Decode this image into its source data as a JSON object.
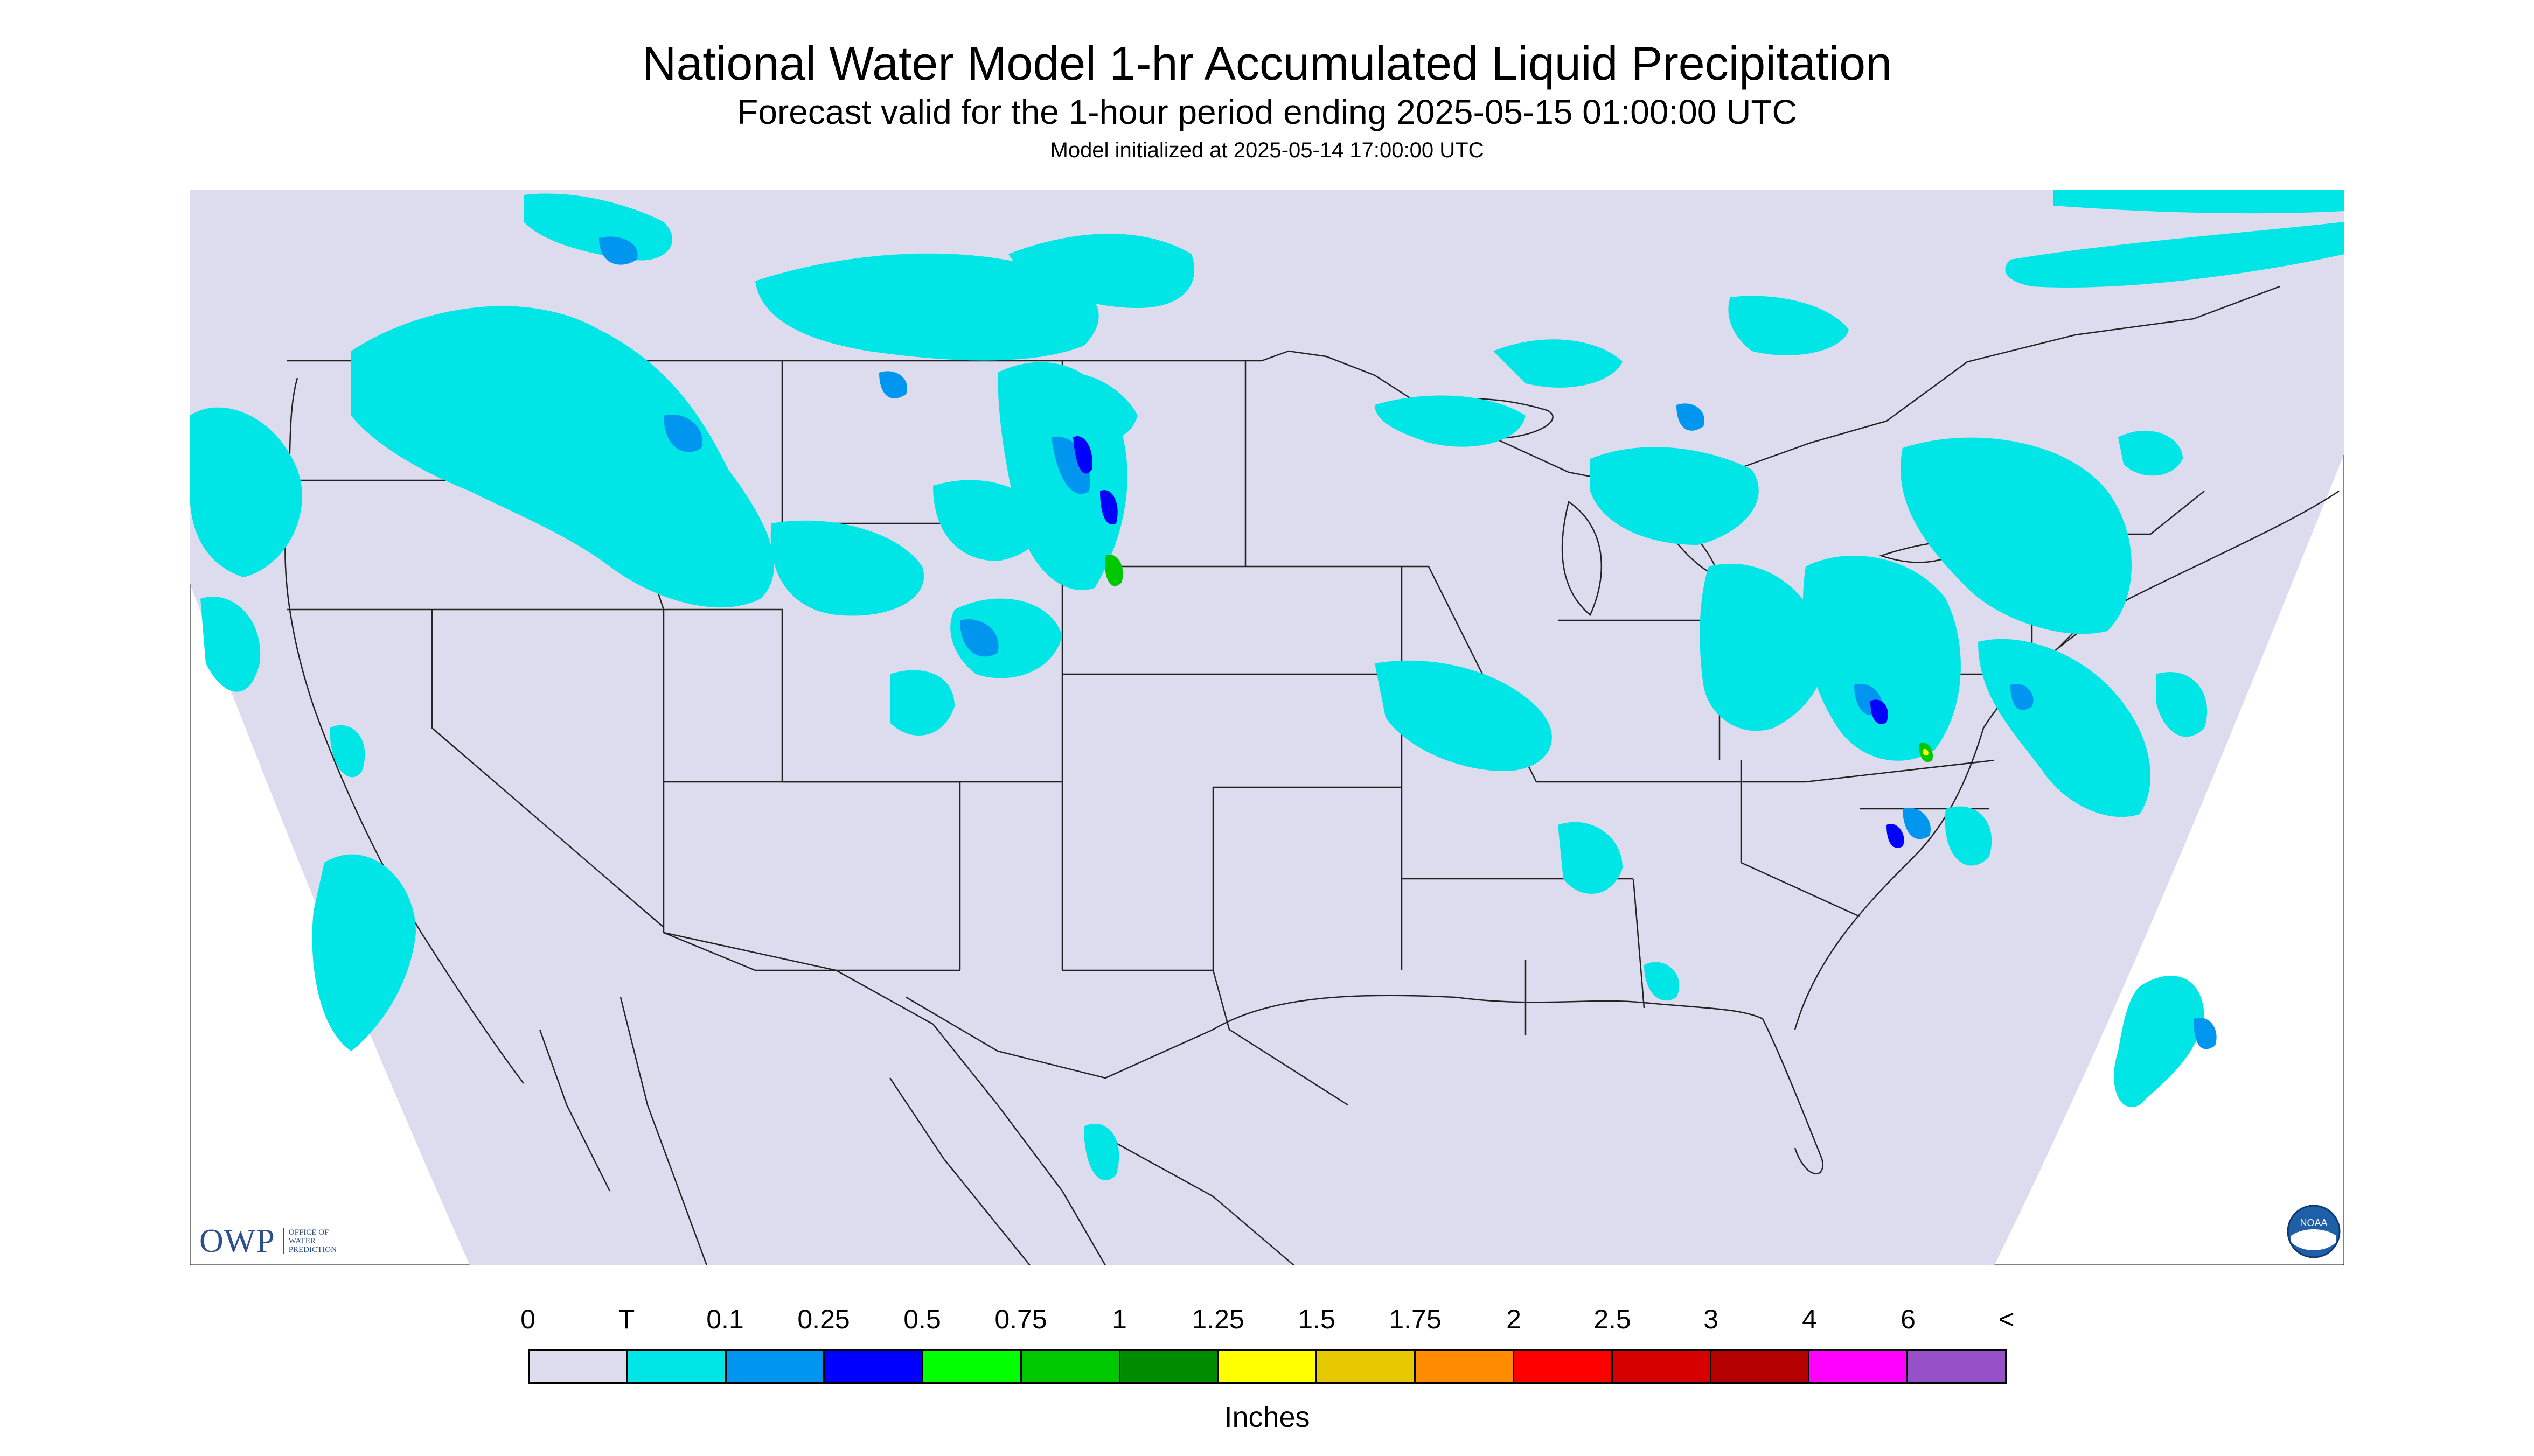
{
  "title": "National Water Model 1-hr Accumulated Liquid Precipitation",
  "subtitle": "Forecast valid for the 1-hour period ending 2025-05-15 01:00:00 UTC",
  "init_line": "Model initialized at 2025-05-14 17:00:00 UTC",
  "map": {
    "region": "Contiguous United States",
    "background_color": "#dcdcee",
    "no_data_color": "#ffffff",
    "boundary_color": "#000000"
  },
  "legend": {
    "ticks": [
      "0",
      "T",
      "0.1",
      "0.25",
      "0.5",
      "0.75",
      "1",
      "1.25",
      "1.5",
      "1.75",
      "2",
      "2.5",
      "3",
      "4",
      "6",
      "<"
    ],
    "colors": [
      "#dcdcee",
      "#00e6e6",
      "#0096f0",
      "#0000ff",
      "#00ff00",
      "#00c800",
      "#008c00",
      "#ffff00",
      "#e6c800",
      "#ff8c00",
      "#ff0000",
      "#d70000",
      "#b40000",
      "#ff00ff",
      "#9650c8"
    ],
    "units": "Inches"
  },
  "logos": {
    "left": {
      "mark": "OWP",
      "text": "OFFICE OF\nWATER\nPREDICTION",
      "icon": "owp-logo"
    },
    "right": {
      "icon": "noaa-logo",
      "text": "NOAA"
    }
  }
}
